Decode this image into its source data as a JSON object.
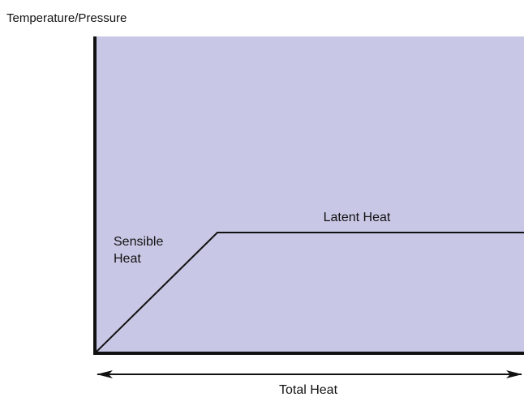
{
  "y_axis_label": "Temperature/Pressure",
  "sensible_heat_label": [
    "Sensible",
    "Heat"
  ],
  "latent_heat_label": "Latent Heat",
  "x_axis_label": "Total Heat"
}
